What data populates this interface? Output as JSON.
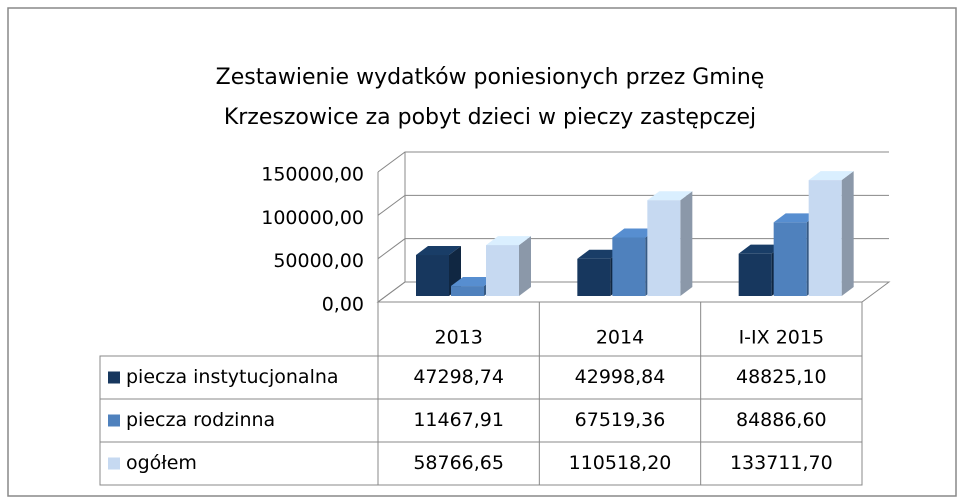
{
  "chart_data": {
    "type": "bar3d",
    "title": "Zestawienie wydatków poniesionych  przez Gminę",
    "subtitle": "Krzeszowice za pobyt dzieci w pieczy zastępczej",
    "categories": [
      "2013",
      "2014",
      "I-IX 2015"
    ],
    "series": [
      {
        "name": "piecza instytucjonalna",
        "color": "#17375e",
        "values": [
          47298.74,
          42998.84,
          48825.1
        ],
        "value_labels": [
          "47298,74",
          "42998,84",
          "48825,10"
        ]
      },
      {
        "name": "piecza rodzinna",
        "color": "#4f81bd",
        "values": [
          11467.91,
          67519.36,
          84886.6
        ],
        "value_labels": [
          "11467,91",
          "67519,36",
          "84886,60"
        ]
      },
      {
        "name": "ogółem",
        "color": "#c6d9f1",
        "values": [
          58766.65,
          110518.2,
          133711.7
        ],
        "value_labels": [
          "58766,65",
          "110518,20",
          "133711,70"
        ]
      }
    ],
    "ylim": [
      0,
      150000
    ],
    "yticks": [
      {
        "value": 0,
        "label": "0,00"
      },
      {
        "value": 50000,
        "label": "50000,00"
      },
      {
        "value": 100000,
        "label": "100000,00"
      },
      {
        "value": 150000,
        "label": "150000,00"
      }
    ],
    "grid": true
  }
}
